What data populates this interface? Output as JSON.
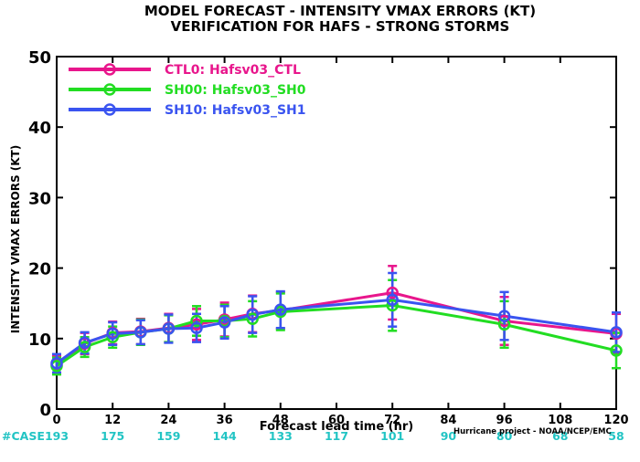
{
  "chart_data": {
    "type": "line",
    "title": "MODEL FORECAST - INTENSITY VMAX ERRORS (KT)",
    "subtitle": "VERIFICATION FOR HAFS - STRONG STORMS",
    "xlabel": "Forecast lead time (hr)",
    "ylabel": "INTENSITY VMAX ERRORS (KT)",
    "xlim": [
      0,
      120
    ],
    "ylim": [
      0,
      50
    ],
    "x_ticks": [
      0,
      12,
      24,
      36,
      48,
      60,
      72,
      84,
      96,
      108,
      120
    ],
    "y_ticks": [
      0,
      10,
      20,
      30,
      40,
      50
    ],
    "case_label": "#CASE",
    "cases": [
      {
        "x": 0,
        "n": "193"
      },
      {
        "x": 12,
        "n": "175"
      },
      {
        "x": 24,
        "n": "159"
      },
      {
        "x": 36,
        "n": "144"
      },
      {
        "x": 48,
        "n": "133"
      },
      {
        "x": 60,
        "n": "117"
      },
      {
        "x": 72,
        "n": "101"
      },
      {
        "x": 84,
        "n": "90"
      },
      {
        "x": 96,
        "n": "80"
      },
      {
        "x": 108,
        "n": "68"
      },
      {
        "x": 120,
        "n": "58"
      }
    ],
    "credit": "Hurricane project - NOAA/NCEP/EMC",
    "legend_position": "top-left",
    "series": [
      {
        "name": "CTL0: Hafsv03_CTL",
        "color": "#e8168c",
        "x": [
          0,
          6,
          12,
          18,
          24,
          30,
          36,
          42,
          48,
          72,
          96,
          120
        ],
        "y": [
          6.3,
          9.3,
          10.8,
          11.0,
          11.5,
          12.0,
          12.7,
          13.5,
          14.0,
          16.5,
          12.5,
          10.7
        ],
        "err": [
          1.3,
          1.5,
          1.6,
          1.8,
          2.0,
          2.2,
          2.4,
          2.6,
          2.6,
          3.8,
          3.4,
          2.8
        ]
      },
      {
        "name": "SH00: Hafsv03_SH0",
        "color": "#22dd22",
        "x": [
          0,
          6,
          12,
          18,
          24,
          30,
          36,
          42,
          48,
          72,
          96,
          120
        ],
        "y": [
          6.1,
          8.8,
          10.2,
          10.9,
          11.4,
          12.5,
          12.5,
          12.8,
          13.8,
          14.7,
          12.0,
          8.3
        ],
        "err": [
          1.2,
          1.4,
          1.5,
          1.8,
          1.9,
          2.1,
          2.3,
          2.5,
          2.6,
          3.6,
          3.3,
          2.5
        ]
      },
      {
        "name": "SH10: Hafsv03_SH1",
        "color": "#3a54f0",
        "x": [
          0,
          6,
          12,
          18,
          24,
          30,
          36,
          42,
          48,
          72,
          96,
          120
        ],
        "y": [
          6.5,
          9.4,
          10.7,
          10.9,
          11.4,
          11.5,
          12.3,
          13.4,
          14.1,
          15.5,
          13.2,
          10.9
        ],
        "err": [
          1.3,
          1.5,
          1.6,
          1.7,
          2.0,
          2.0,
          2.3,
          2.6,
          2.6,
          3.8,
          3.4,
          2.8
        ]
      }
    ]
  }
}
